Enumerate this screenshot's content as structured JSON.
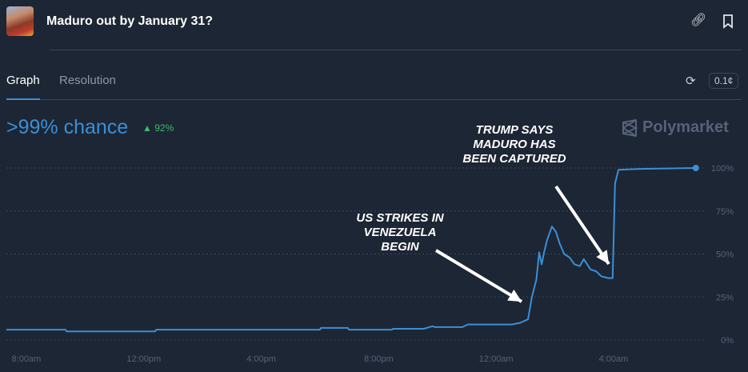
{
  "header": {
    "title": "Maduro out by January 31?",
    "icons": [
      "link-icon",
      "bookmark-icon"
    ]
  },
  "tabs": [
    {
      "label": "Graph",
      "active": true
    },
    {
      "label": "Resolution",
      "active": false
    }
  ],
  "controls": {
    "refresh_icon": "refresh-icon",
    "precision": "0.1¢"
  },
  "summary": {
    "chance": ">99% chance",
    "change": "92%",
    "change_direction": "up",
    "change_color": "#3dbb6a"
  },
  "brand": "Polymarket",
  "annotations": [
    {
      "lines": [
        "TRUMP SAYS",
        "MADURO HAS",
        "BEEN CAPTURED"
      ]
    },
    {
      "lines": [
        "US STRIKES IN",
        "VENEZUELA",
        "BEGIN"
      ]
    }
  ],
  "chart_data": {
    "type": "line",
    "x_ticks": [
      "8:00am",
      "12:00pm",
      "4:00pm",
      "8:00pm",
      "12:00am",
      "4:00am"
    ],
    "y_ticks": [
      "0%",
      "25%",
      "50%",
      "75%",
      "100%"
    ],
    "ylim": [
      0,
      100
    ],
    "grid": "horizontal dotted",
    "line_color": "#3b8fd6",
    "points": [
      [
        "7:19am",
        6
      ],
      [
        "9:20am",
        6
      ],
      [
        "9:22am",
        5
      ],
      [
        "12:23pm",
        5
      ],
      [
        "12:25pm",
        6
      ],
      [
        "6:00pm",
        6
      ],
      [
        "6:02pm",
        7
      ],
      [
        "6:57pm",
        7
      ],
      [
        "6:59pm",
        6
      ],
      [
        "8:27pm",
        6
      ],
      [
        "8:29pm",
        6.5
      ],
      [
        "9:32pm",
        6.5
      ],
      [
        "9:50pm",
        8
      ],
      [
        "9:55pm",
        7.5
      ],
      [
        "10:51pm",
        7.5
      ],
      [
        "11:02pm",
        9
      ],
      [
        "12:00am",
        9
      ],
      [
        "12:32am",
        9
      ],
      [
        "12:49am",
        10
      ],
      [
        "1:05am",
        12
      ],
      [
        "1:13am",
        25
      ],
      [
        "1:22am",
        35
      ],
      [
        "1:28am",
        51
      ],
      [
        "1:33am",
        44
      ],
      [
        "1:38am",
        51
      ],
      [
        "1:44am",
        58
      ],
      [
        "1:54am",
        66
      ],
      [
        "2:02am",
        63
      ],
      [
        "2:10am",
        56
      ],
      [
        "2:19am",
        50
      ],
      [
        "2:30am",
        48
      ],
      [
        "2:40am",
        44
      ],
      [
        "2:51am",
        43
      ],
      [
        "2:59am",
        47
      ],
      [
        "3:13am",
        41
      ],
      [
        "3:24am",
        40
      ],
      [
        "3:35am",
        37
      ],
      [
        "3:49am",
        36
      ],
      [
        "3:58am",
        36
      ],
      [
        "4:03am",
        91
      ],
      [
        "4:10am",
        99
      ],
      [
        "4:54am",
        99.5
      ],
      [
        "6:48am",
        100
      ]
    ]
  }
}
